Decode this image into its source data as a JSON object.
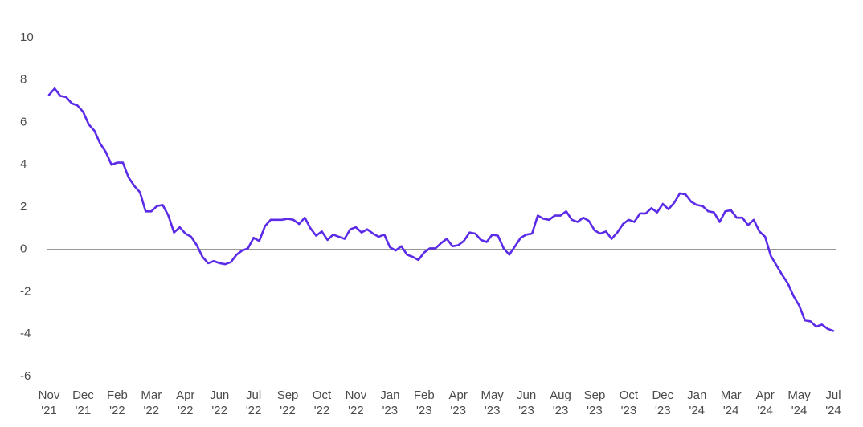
{
  "chart_data": {
    "type": "line",
    "color": "#5b2be8",
    "values": [
      7.3,
      7.6,
      7.25,
      7.2,
      6.9,
      6.8,
      6.5,
      5.9,
      5.6,
      5.0,
      4.6,
      4.0,
      4.1,
      4.1,
      3.4,
      3.0,
      2.7,
      1.8,
      1.8,
      2.05,
      2.1,
      1.6,
      0.8,
      1.05,
      0.75,
      0.6,
      0.2,
      -0.35,
      -0.65,
      -0.55,
      -0.65,
      -0.7,
      -0.6,
      -0.25,
      -0.05,
      0.05,
      0.55,
      0.4,
      1.1,
      1.4,
      1.4,
      1.4,
      1.45,
      1.4,
      1.2,
      1.5,
      1.0,
      0.65,
      0.85,
      0.45,
      0.7,
      0.6,
      0.5,
      0.95,
      1.05,
      0.8,
      0.95,
      0.75,
      0.6,
      0.7,
      0.1,
      -0.05,
      0.15,
      -0.25,
      -0.35,
      -0.5,
      -0.15,
      0.05,
      0.05,
      0.3,
      0.5,
      0.15,
      0.2,
      0.4,
      0.8,
      0.75,
      0.45,
      0.35,
      0.7,
      0.65,
      0.05,
      -0.25,
      0.15,
      0.55,
      0.7,
      0.75,
      1.6,
      1.45,
      1.4,
      1.6,
      1.6,
      1.8,
      1.4,
      1.3,
      1.5,
      1.35,
      0.9,
      0.75,
      0.85,
      0.5,
      0.8,
      1.2,
      1.4,
      1.3,
      1.7,
      1.7,
      1.95,
      1.75,
      2.15,
      1.9,
      2.2,
      2.65,
      2.6,
      2.25,
      2.1,
      2.05,
      1.8,
      1.75,
      1.3,
      1.8,
      1.85,
      1.5,
      1.5,
      1.15,
      1.4,
      0.85,
      0.6,
      -0.3,
      -0.75,
      -1.2,
      -1.6,
      -2.2,
      -2.65,
      -3.35,
      -3.4,
      -3.65,
      -3.55,
      -3.75,
      -3.85
    ],
    "xlim": [
      0,
      138
    ],
    "xticks": [
      {
        "value": 0,
        "label": [
          "Nov",
          "'21"
        ]
      },
      {
        "value": 6,
        "label": [
          "Dec",
          "'21"
        ]
      },
      {
        "value": 12,
        "label": [
          "Feb",
          "'22"
        ]
      },
      {
        "value": 18,
        "label": [
          "Mar",
          "'22"
        ]
      },
      {
        "value": 24,
        "label": [
          "Apr",
          "'22"
        ]
      },
      {
        "value": 30,
        "label": [
          "Jun",
          "'22"
        ]
      },
      {
        "value": 36,
        "label": [
          "Jul",
          "'22"
        ]
      },
      {
        "value": 42,
        "label": [
          "Sep",
          "'22"
        ]
      },
      {
        "value": 48,
        "label": [
          "Oct",
          "'22"
        ]
      },
      {
        "value": 54,
        "label": [
          "Nov",
          "'22"
        ]
      },
      {
        "value": 60,
        "label": [
          "Jan",
          "'23"
        ]
      },
      {
        "value": 66,
        "label": [
          "Feb",
          "'23"
        ]
      },
      {
        "value": 72,
        "label": [
          "Apr",
          "'23"
        ]
      },
      {
        "value": 78,
        "label": [
          "May",
          "'23"
        ]
      },
      {
        "value": 84,
        "label": [
          "Jun",
          "'23"
        ]
      },
      {
        "value": 90,
        "label": [
          "Aug",
          "'23"
        ]
      },
      {
        "value": 96,
        "label": [
          "Sep",
          "'23"
        ]
      },
      {
        "value": 102,
        "label": [
          "Oct",
          "'23"
        ]
      },
      {
        "value": 108,
        "label": [
          "Dec",
          "'23"
        ]
      },
      {
        "value": 114,
        "label": [
          "Jan",
          "'24"
        ]
      },
      {
        "value": 120,
        "label": [
          "Mar",
          "'24"
        ]
      },
      {
        "value": 126,
        "label": [
          "Apr",
          "'24"
        ]
      },
      {
        "value": 132,
        "label": [
          "May",
          "'24"
        ]
      },
      {
        "value": 138,
        "label": [
          "Jul",
          "'24"
        ]
      }
    ],
    "ylim": [
      -6,
      10
    ],
    "yticks": [
      -6,
      -4,
      -2,
      0,
      2,
      4,
      6,
      8,
      10
    ],
    "zero_line": true
  }
}
